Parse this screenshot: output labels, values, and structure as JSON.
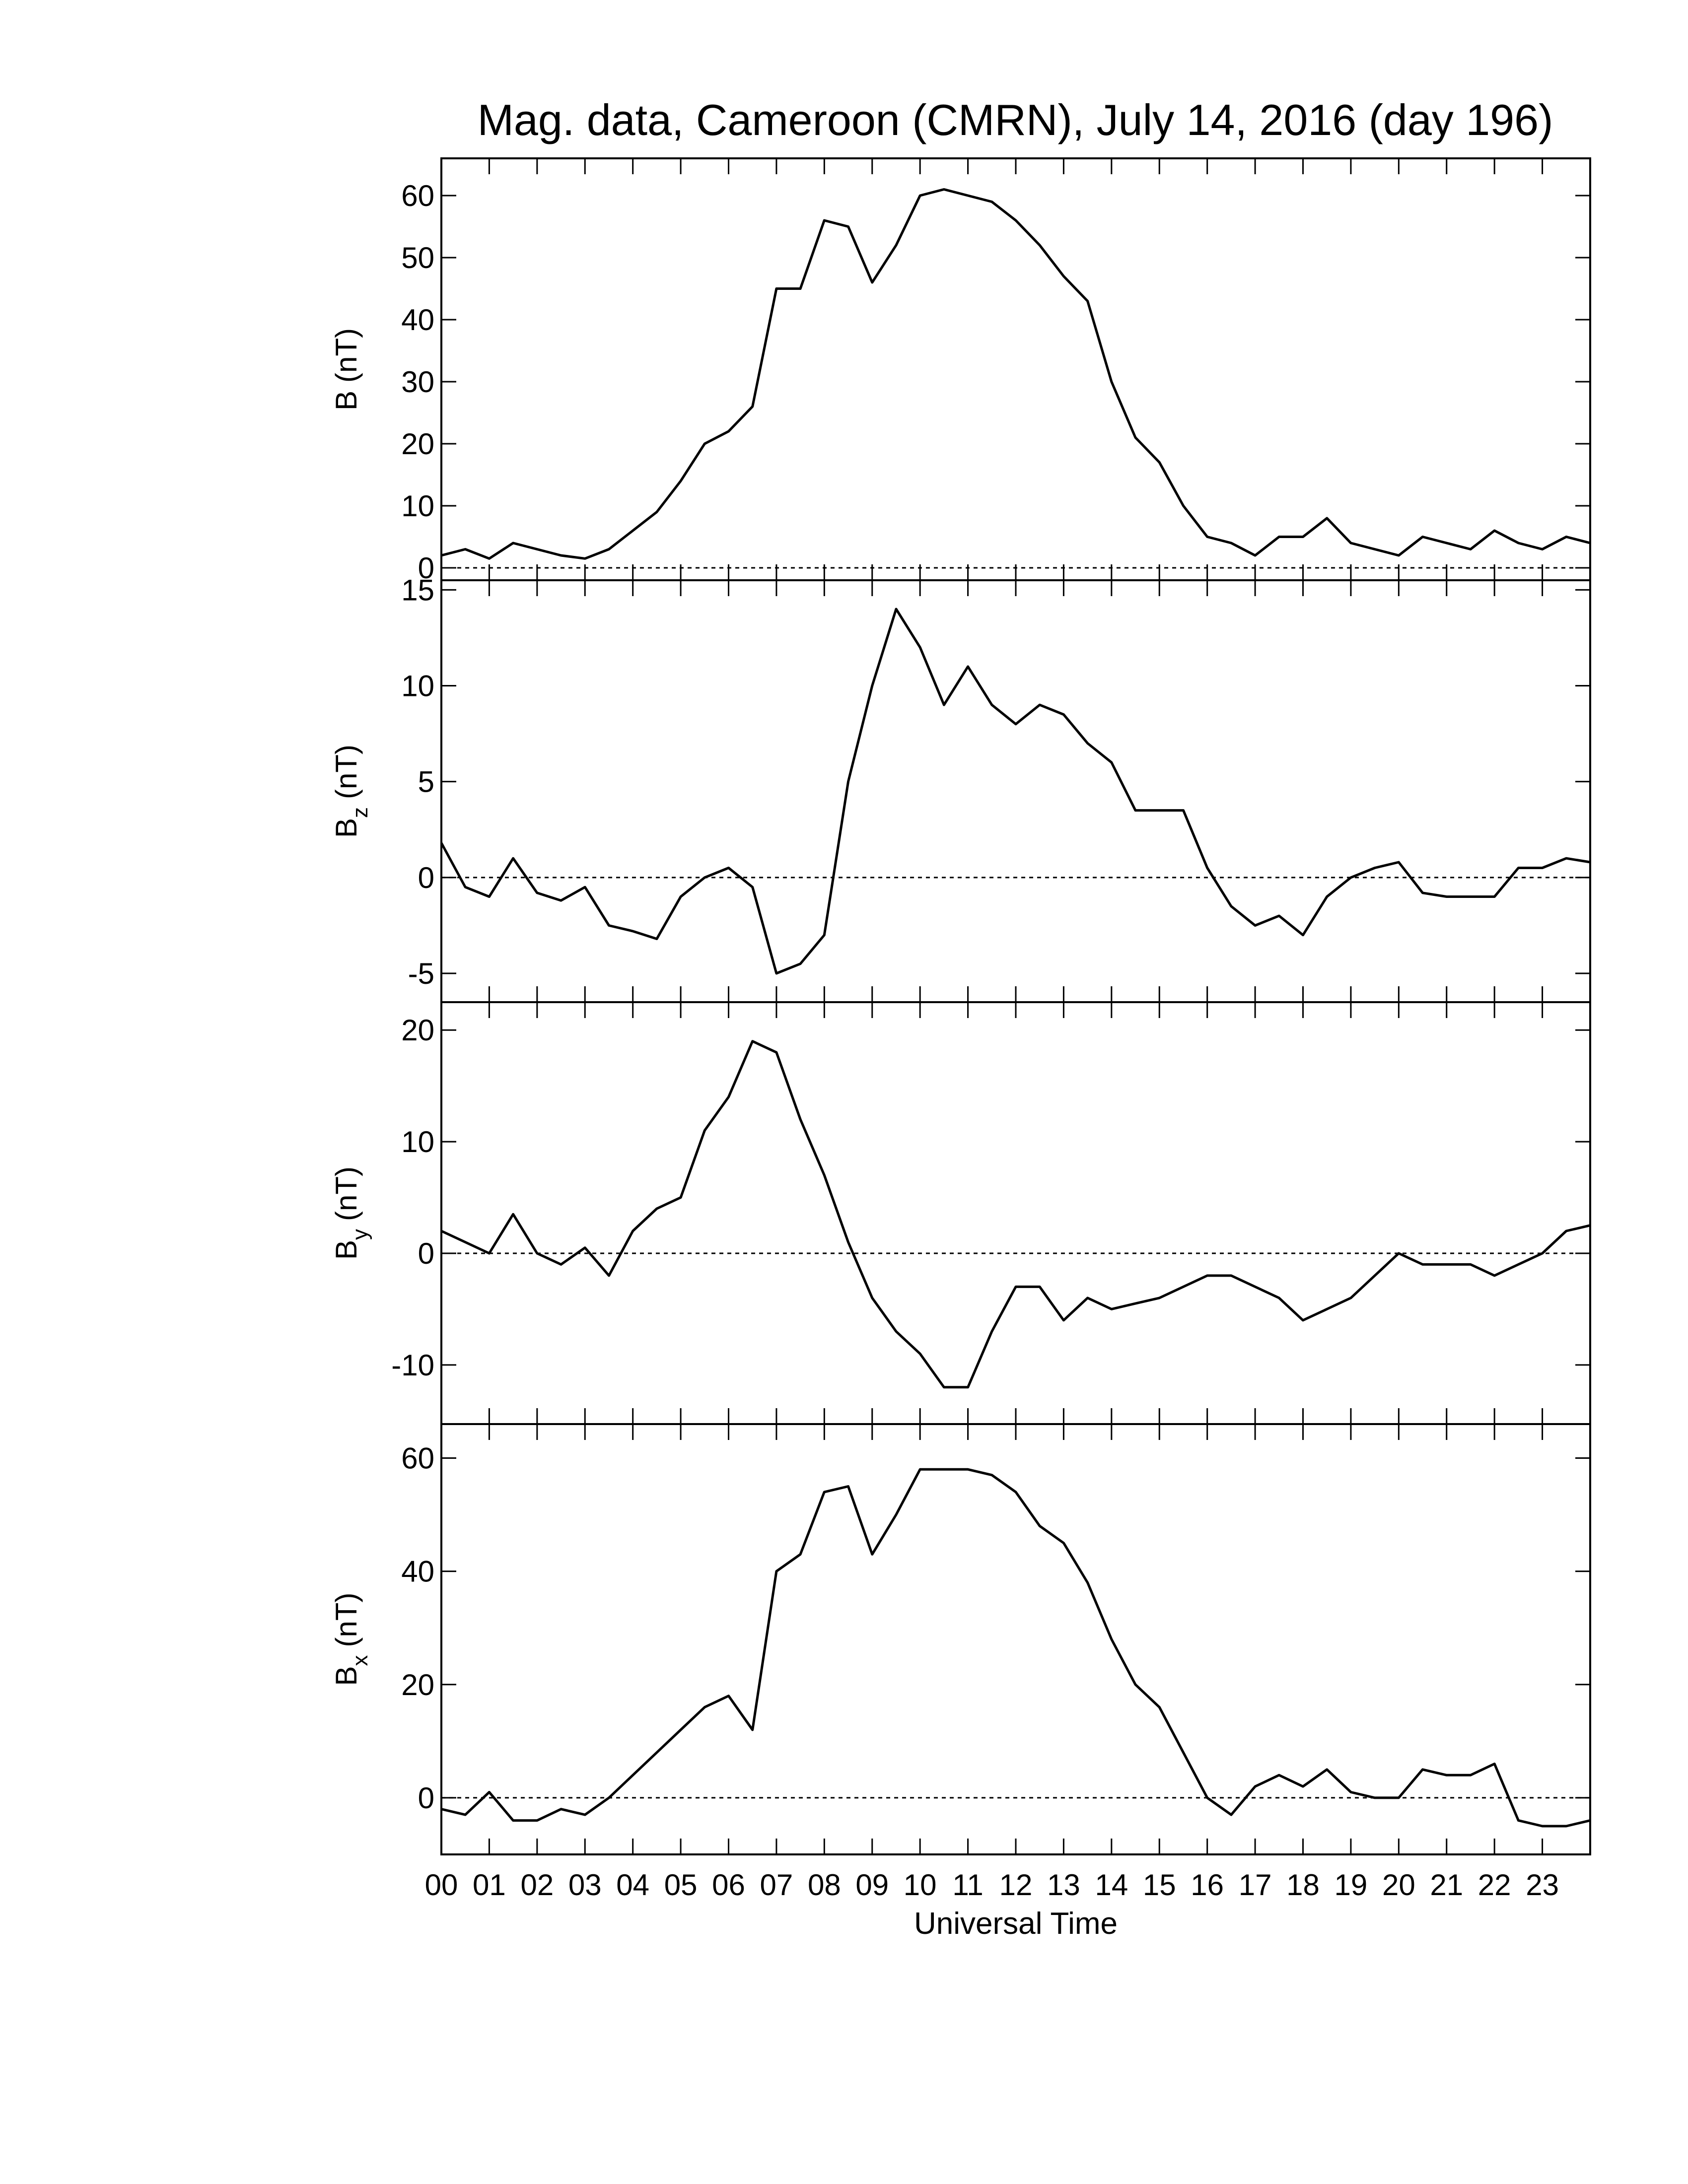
{
  "chart_data": [
    {
      "type": "line",
      "title": "Mag. data, Cameroon (CMRN), July 14, 2016 (day 196)",
      "ylabel": "B",
      "ylabel_unit": "(nT)",
      "color": "#000000",
      "hline": 0,
      "xlim": [
        0,
        24
      ],
      "xticks": [
        {
          "value": 0,
          "label": "00"
        },
        {
          "value": 1,
          "label": "01"
        },
        {
          "value": 2,
          "label": "02"
        },
        {
          "value": 3,
          "label": "03"
        },
        {
          "value": 4,
          "label": "04"
        },
        {
          "value": 5,
          "label": "05"
        },
        {
          "value": 6,
          "label": "06"
        },
        {
          "value": 7,
          "label": "07"
        },
        {
          "value": 8,
          "label": "08"
        },
        {
          "value": 9,
          "label": "09"
        },
        {
          "value": 10,
          "label": "10"
        },
        {
          "value": 11,
          "label": "11"
        },
        {
          "value": 12,
          "label": "12"
        },
        {
          "value": 13,
          "label": "13"
        },
        {
          "value": 14,
          "label": "14"
        },
        {
          "value": 15,
          "label": "15"
        },
        {
          "value": 16,
          "label": "16"
        },
        {
          "value": 17,
          "label": "17"
        },
        {
          "value": 18,
          "label": "18"
        },
        {
          "value": 19,
          "label": "19"
        },
        {
          "value": 20,
          "label": "20"
        },
        {
          "value": 21,
          "label": "21"
        },
        {
          "value": 22,
          "label": "22"
        },
        {
          "value": 23,
          "label": "23"
        }
      ],
      "ylim": [
        -2,
        66
      ],
      "yticks": [
        0,
        10,
        20,
        30,
        40,
        50,
        60
      ],
      "x": [
        0,
        0.5,
        1,
        1.5,
        2,
        2.5,
        3,
        3.5,
        4,
        4.5,
        5,
        5.5,
        6,
        6.5,
        7,
        7.5,
        8,
        8.5,
        9,
        9.5,
        10,
        10.5,
        11,
        11.5,
        12,
        12.5,
        13,
        13.5,
        14,
        14.5,
        15,
        15.5,
        16,
        16.5,
        17,
        17.5,
        18,
        18.5,
        19,
        19.5,
        20,
        20.5,
        21,
        21.5,
        22,
        22.5,
        23,
        23.5,
        24
      ],
      "values": [
        2,
        3,
        1.5,
        4,
        3,
        2,
        1.5,
        3,
        6,
        9,
        14,
        20,
        22,
        26,
        45,
        45,
        56,
        55,
        46,
        52,
        60,
        61,
        60,
        59,
        56,
        52,
        47,
        43,
        30,
        21,
        17,
        10,
        5,
        4,
        2,
        5,
        5,
        8,
        4,
        3,
        2,
        5,
        4,
        3,
        6,
        4,
        3,
        5,
        4
      ]
    },
    {
      "type": "line",
      "ylabel": "B",
      "ylabel_subscript": "z",
      "ylabel_unit": "(nT)",
      "color": "#000000",
      "hline": 0,
      "xlim": [
        0,
        24
      ],
      "ylim": [
        -6.5,
        15.5
      ],
      "yticks": [
        -5,
        0,
        5,
        10,
        15
      ],
      "x": [
        0,
        0.5,
        1,
        1.5,
        2,
        2.5,
        3,
        3.5,
        4,
        4.5,
        5,
        5.5,
        6,
        6.5,
        7,
        7.5,
        8,
        8.5,
        9,
        9.5,
        10,
        10.5,
        11,
        11.5,
        12,
        12.5,
        13,
        13.5,
        14,
        14.5,
        15,
        15.5,
        16,
        16.5,
        17,
        17.5,
        18,
        18.5,
        19,
        19.5,
        20,
        20.5,
        21,
        21.5,
        22,
        22.5,
        23,
        23.5,
        24
      ],
      "values": [
        1.8,
        -0.5,
        -1,
        1,
        -0.8,
        -1.2,
        -0.5,
        -2.5,
        -2.8,
        -3.2,
        -1,
        0,
        0.5,
        -0.5,
        -5,
        -4.5,
        -3,
        5,
        10,
        14,
        12,
        9,
        11,
        9,
        8,
        9,
        8.5,
        7,
        6,
        3.5,
        3.5,
        3.5,
        0.5,
        -1.5,
        -2.5,
        -2,
        -3,
        -1,
        0,
        0.5,
        0.8,
        -0.8,
        -1,
        -1,
        -1,
        0.5,
        0.5,
        1,
        0.8
      ]
    },
    {
      "type": "line",
      "ylabel": "B",
      "ylabel_subscript": "y",
      "ylabel_unit": "(nT)",
      "color": "#000000",
      "hline": 0,
      "xlim": [
        0,
        24
      ],
      "ylim": [
        -15.3,
        22.5
      ],
      "yticks": [
        -10,
        0,
        10,
        20
      ],
      "x": [
        0,
        0.5,
        1,
        1.5,
        2,
        2.5,
        3,
        3.5,
        4,
        4.5,
        5,
        5.5,
        6,
        6.5,
        7,
        7.5,
        8,
        8.5,
        9,
        9.5,
        10,
        10.5,
        11,
        11.5,
        12,
        12.5,
        13,
        13.5,
        14,
        14.5,
        15,
        15.5,
        16,
        16.5,
        17,
        17.5,
        18,
        18.5,
        19,
        19.5,
        20,
        20.5,
        21,
        21.5,
        22,
        22.5,
        23,
        23.5,
        24
      ],
      "values": [
        2,
        1,
        0,
        3.5,
        0,
        -1,
        0.5,
        -2,
        2,
        4,
        5,
        11,
        14,
        19,
        18,
        12,
        7,
        1,
        -4,
        -7,
        -9,
        -12,
        -12,
        -7,
        -3,
        -3,
        -6,
        -4,
        -5,
        -4.5,
        -4,
        -3,
        -2,
        -2,
        -3,
        -4,
        -6,
        -5,
        -4,
        -2,
        0,
        -1,
        -1,
        -1,
        -2,
        -1,
        0,
        2,
        2.5
      ]
    },
    {
      "type": "line",
      "ylabel": "B",
      "ylabel_subscript": "x",
      "ylabel_unit": "(nT)",
      "xlabel": "Universal Time",
      "color": "#000000",
      "hline": 0,
      "xlim": [
        0,
        24
      ],
      "ylim": [
        -10,
        66
      ],
      "yticks": [
        0,
        20,
        40,
        60
      ],
      "x": [
        0,
        0.5,
        1,
        1.5,
        2,
        2.5,
        3,
        3.5,
        4,
        4.5,
        5,
        5.5,
        6,
        6.5,
        7,
        7.5,
        8,
        8.5,
        9,
        9.5,
        10,
        10.5,
        11,
        11.5,
        12,
        12.5,
        13,
        13.5,
        14,
        14.5,
        15,
        15.5,
        16,
        16.5,
        17,
        17.5,
        18,
        18.5,
        19,
        19.5,
        20,
        20.5,
        21,
        21.5,
        22,
        22.5,
        23,
        23.5,
        24
      ],
      "values": [
        -2,
        -3,
        1,
        -4,
        -4,
        -2,
        -3,
        0,
        4,
        8,
        12,
        16,
        18,
        12,
        40,
        43,
        54,
        55,
        43,
        50,
        58,
        58,
        58,
        57,
        54,
        48,
        45,
        38,
        28,
        20,
        16,
        8,
        0,
        -3,
        2,
        4,
        2,
        5,
        1,
        0,
        0,
        5,
        4,
        4,
        6,
        -4,
        -5,
        -5,
        -4
      ]
    }
  ]
}
